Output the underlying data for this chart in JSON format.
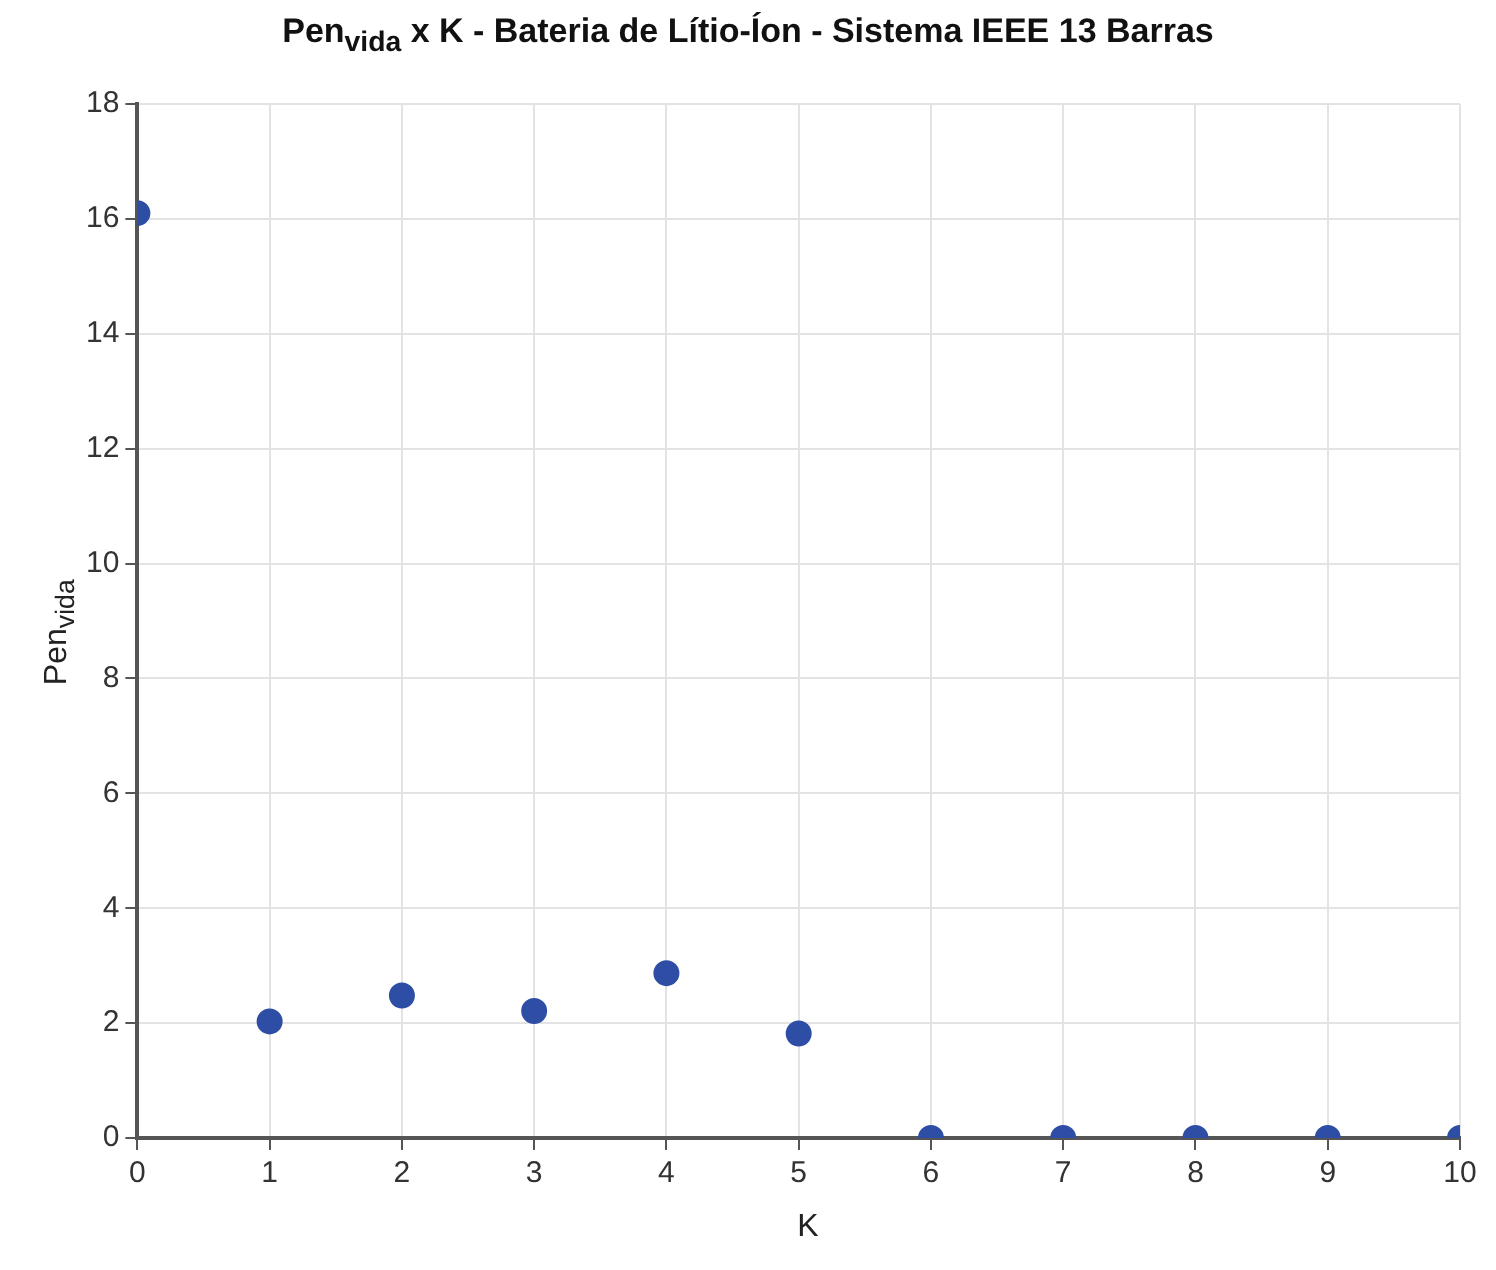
{
  "chart_data": {
    "type": "scatter",
    "title": "Pen$_{vida}$ x K - Bateria de Lítio-Íon - Sistema IEEE 13 Barras",
    "xlabel": "K",
    "ylabel": "Pen$_{vida}$",
    "x": [
      0,
      1,
      2,
      3,
      4,
      5,
      6,
      7,
      8,
      9,
      10
    ],
    "series": [
      {
        "color": "#2e4ea6",
        "values": [
          16.1,
          2.03,
          2.48,
          2.21,
          2.87,
          1.82,
          0,
          0,
          0,
          0,
          0
        ]
      }
    ],
    "xlim": [
      0,
      10
    ],
    "xticks": [
      0,
      1,
      2,
      3,
      4,
      5,
      6,
      7,
      8,
      9,
      10
    ],
    "ylim": [
      0,
      18
    ],
    "yticks": [
      0,
      2,
      4,
      6,
      8,
      10,
      12,
      14,
      16,
      18
    ],
    "grid": true,
    "marker": "circle",
    "legend": false
  }
}
